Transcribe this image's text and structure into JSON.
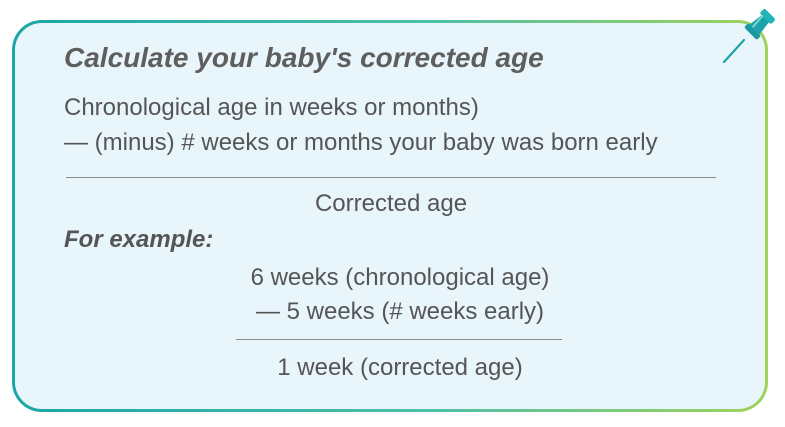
{
  "card": {
    "title": "Calculate your baby's corrected age",
    "formula": {
      "line1": "Chronological age in weeks or months)",
      "line2": "— (minus) # weeks or months your baby was born early",
      "result": "Corrected age"
    },
    "example": {
      "label": "For example:",
      "line1": "6 weeks (chronological age)",
      "line2": "— 5 weeks (# weeks early)",
      "result": "1 week (corrected age)"
    }
  },
  "colors": {
    "card_background": "#e8f6fb",
    "border_start": "#1aa6a6",
    "border_end": "#9fd35a",
    "pin": "#1ba3a9",
    "text": "#555555"
  },
  "icons": {
    "pin": "pushpin-icon"
  }
}
